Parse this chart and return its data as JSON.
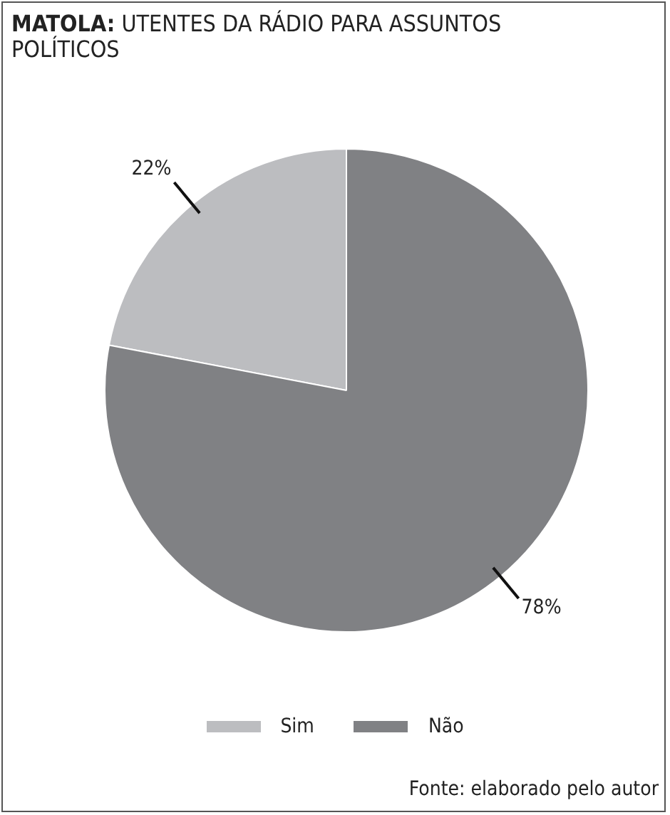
{
  "chart_data": {
    "type": "pie",
    "title": "MATOLA: UTENTES DA RÁDIO PARA ASSUNTOS POLÍTICOS",
    "categories": [
      "Sim",
      "Não"
    ],
    "values": [
      22,
      78
    ],
    "colors": [
      "#bcbdc0",
      "#808184"
    ],
    "value_labels": [
      "22%",
      "78%"
    ],
    "legend": "bottom",
    "annotations": [
      "Fonte: elaborado pelo autor"
    ]
  }
}
